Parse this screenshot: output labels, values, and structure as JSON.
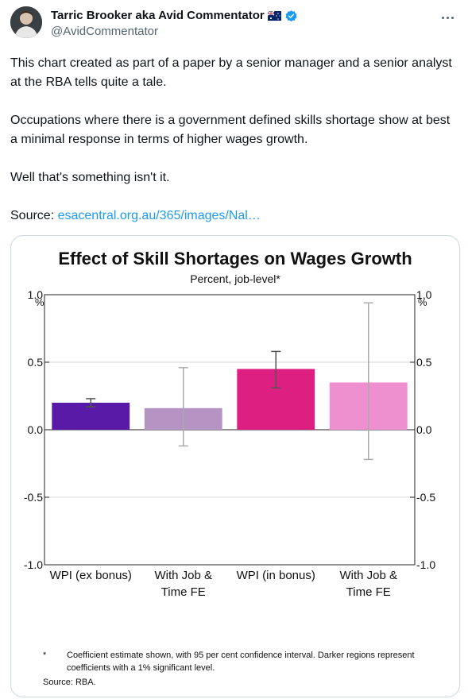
{
  "author": {
    "name": "Tarric Brooker aka Avid Commentator",
    "handle": "@AvidCommentator",
    "flag_icon": "australia-flag-icon",
    "verified_icon": "verified-badge-icon"
  },
  "tweet": {
    "para1": "This chart created as part of a paper by a senior manager and a senior analyst at the RBA tells quite a tale.",
    "para2": "Occupations where there is a government defined skills shortage show at best a minimal response in terms of higher wages growth.",
    "para3": "Well that's something isn't it.",
    "source_label": "Source: ",
    "source_link": "esacentral.org.au/365/images/Nal…"
  },
  "chart_data": {
    "type": "bar",
    "title": "Effect of Skill Shortages on Wages Growth",
    "subtitle": "Percent, job-level*",
    "left_unit": "%",
    "right_unit": "%",
    "categories": [
      [
        "WPI (ex bonus)"
      ],
      [
        "With Job &",
        "Time FE"
      ],
      [
        "WPI (in bonus)"
      ],
      [
        "With Job &",
        "Time FE"
      ]
    ],
    "values": [
      0.2,
      0.16,
      0.45,
      0.35
    ],
    "ci_low": [
      0.17,
      -0.12,
      0.31,
      -0.22
    ],
    "ci_high": [
      0.23,
      0.46,
      0.58,
      0.94
    ],
    "colors": [
      "#5a1aa8",
      "#b593c2",
      "#de1f82",
      "#ee8fd0"
    ],
    "ylim": [
      -1.0,
      1.0
    ],
    "yticks": [
      "1.0",
      "0.5",
      "0.0",
      "-0.5",
      "-1.0"
    ],
    "ytick_values": [
      1.0,
      0.5,
      0.0,
      -0.5,
      -1.0
    ],
    "footnote_marker": "*",
    "footnote": "Coefficient estimate shown, with 95 per cent confidence interval. Darker regions represent coefficients with a 1% significant level.",
    "source": "Source:   RBA."
  }
}
